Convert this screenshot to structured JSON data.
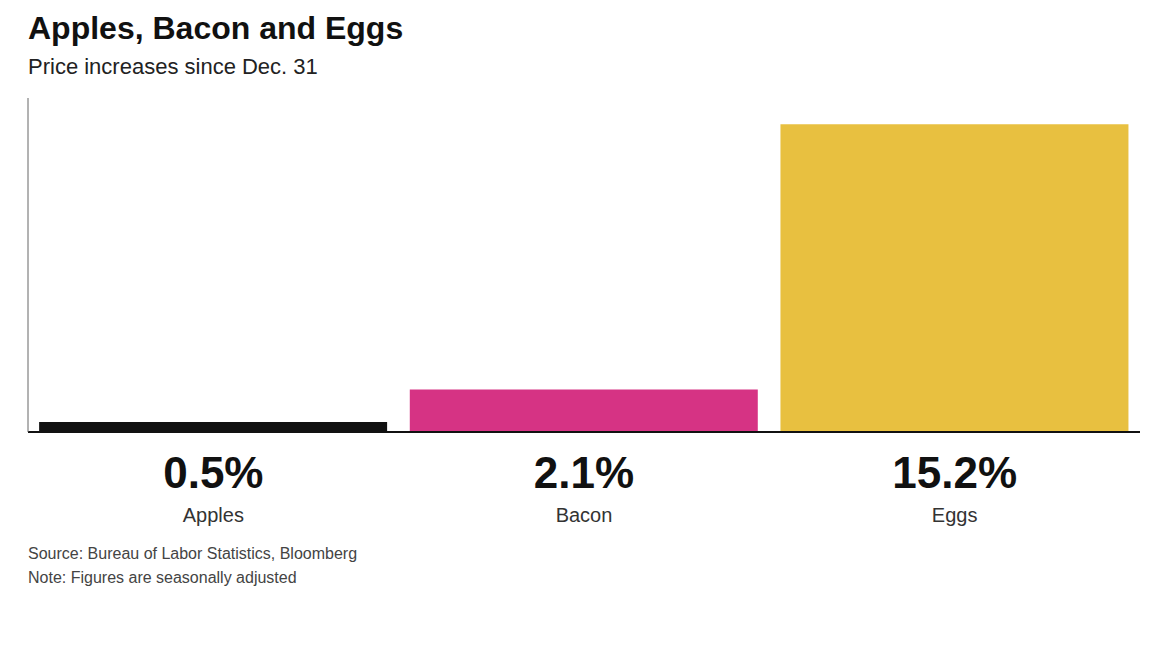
{
  "chart_data": {
    "type": "bar",
    "title": "Apples, Bacon and Eggs",
    "subtitle": "Price increases since Dec. 31",
    "categories": [
      "Apples",
      "Bacon",
      "Eggs"
    ],
    "values": [
      0.5,
      2.1,
      15.2
    ],
    "value_labels": [
      "0.5%",
      "2.1%",
      "15.2%"
    ],
    "colors": [
      "#111111",
      "#D63384",
      "#E8C040"
    ],
    "ylim": [
      0,
      16.5
    ],
    "tick_labels": "x",
    "data_labels": true,
    "annotations": [
      "Source: Bureau of Labor Statistics, Bloomberg",
      "Note: Figures are seasonally adjusted"
    ]
  }
}
